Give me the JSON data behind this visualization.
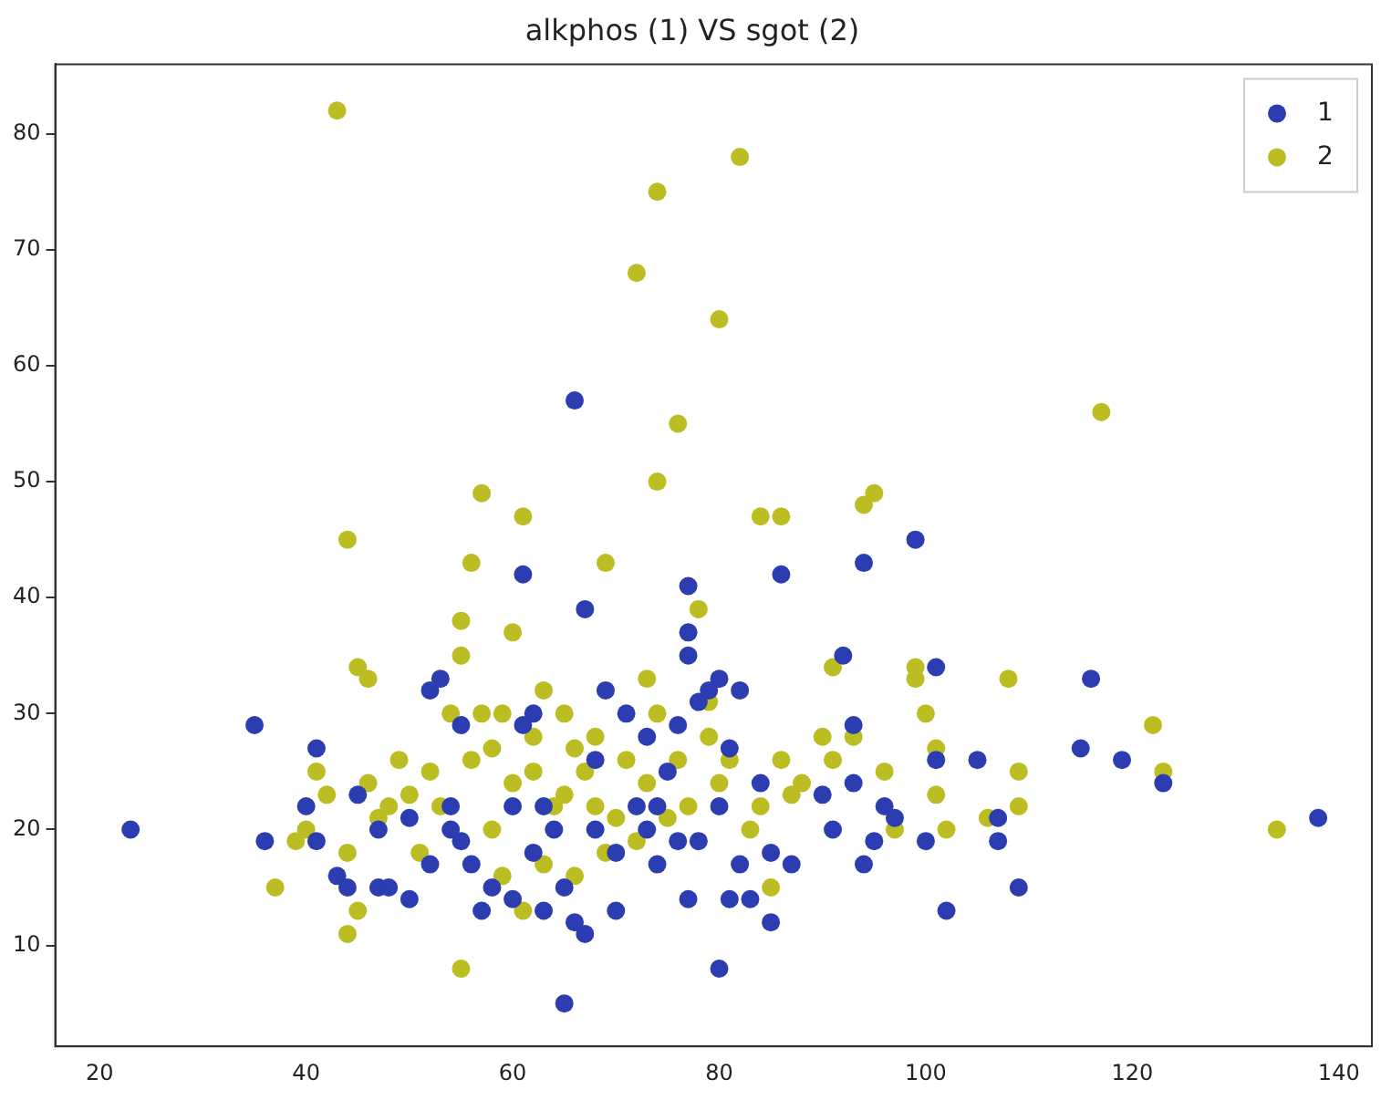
{
  "chart_data": {
    "type": "scatter",
    "title": "alkphos (1) VS sgot (2)",
    "marker": "circle",
    "legend": "top right",
    "grid": false,
    "xlim": [
      15.7,
      143.2
    ],
    "xticks": [
      20,
      40,
      60,
      80,
      100,
      120,
      140
    ],
    "ylim": [
      1.3,
      86
    ],
    "yticks": [
      10,
      20,
      30,
      40,
      50,
      60,
      70,
      80
    ],
    "series": [
      {
        "name": "1",
        "color": "#2b3db0",
        "x": [
          23,
          35,
          36,
          41,
          40,
          41,
          43,
          44,
          45,
          47,
          48,
          47,
          50,
          50,
          52,
          53,
          52,
          54,
          54,
          55,
          55,
          56,
          57,
          58,
          60,
          60,
          61,
          61,
          62,
          62,
          63,
          63,
          64,
          65,
          65,
          66,
          66,
          67,
          67,
          68,
          68,
          69,
          70,
          70,
          71,
          72,
          73,
          73,
          74,
          74,
          75,
          76,
          76,
          77,
          77,
          77,
          77,
          78,
          78,
          79,
          80,
          80,
          80,
          81,
          81,
          82,
          82,
          83,
          84,
          85,
          86,
          85,
          87,
          90,
          91,
          92,
          93,
          93,
          94,
          94,
          95,
          96,
          97,
          99,
          100,
          101,
          101,
          102,
          105,
          107,
          107,
          109,
          115,
          116,
          119,
          123,
          138
        ],
        "values": [
          20,
          29,
          19,
          27,
          22,
          19,
          16,
          15,
          23,
          15,
          15,
          20,
          21,
          14,
          32,
          33,
          17,
          22,
          20,
          29,
          19,
          17,
          13,
          15,
          22,
          14,
          29,
          42,
          18,
          30,
          22,
          13,
          20,
          5,
          15,
          57,
          12,
          11,
          39,
          20,
          26,
          32,
          18,
          13,
          30,
          22,
          20,
          28,
          17,
          22,
          25,
          29,
          19,
          14,
          35,
          41,
          37,
          31,
          19,
          32,
          22,
          8,
          33,
          14,
          27,
          32,
          17,
          14,
          24,
          18,
          42,
          12,
          17,
          23,
          20,
          35,
          29,
          24,
          43,
          17,
          19,
          22,
          21,
          45,
          19,
          34,
          26,
          13,
          26,
          21,
          19,
          15,
          27,
          33,
          26,
          24,
          21
        ]
      },
      {
        "name": "2",
        "color": "#bcbd22",
        "x": [
          37,
          39,
          40,
          41,
          42,
          43,
          44,
          44,
          44,
          45,
          45,
          46,
          46,
          47,
          48,
          49,
          50,
          51,
          52,
          53,
          54,
          55,
          55,
          55,
          56,
          56,
          57,
          57,
          58,
          58,
          59,
          59,
          60,
          60,
          61,
          61,
          62,
          62,
          63,
          63,
          64,
          65,
          65,
          66,
          66,
          67,
          68,
          68,
          69,
          69,
          70,
          71,
          72,
          72,
          73,
          73,
          74,
          74,
          74,
          75,
          76,
          76,
          77,
          78,
          79,
          79,
          80,
          80,
          81,
          82,
          83,
          84,
          84,
          85,
          86,
          86,
          87,
          88,
          90,
          91,
          91,
          93,
          94,
          95,
          96,
          97,
          99,
          99,
          100,
          101,
          101,
          102,
          106,
          108,
          109,
          109,
          117,
          122,
          123,
          134
        ],
        "values": [
          15,
          19,
          20,
          25,
          23,
          82,
          45,
          18,
          11,
          13,
          34,
          33,
          24,
          21,
          22,
          26,
          23,
          18,
          25,
          22,
          30,
          8,
          38,
          35,
          43,
          26,
          30,
          49,
          27,
          20,
          30,
          16,
          37,
          24,
          47,
          13,
          25,
          28,
          32,
          17,
          22,
          30,
          23,
          27,
          16,
          25,
          28,
          22,
          43,
          18,
          21,
          26,
          68,
          19,
          33,
          24,
          50,
          75,
          30,
          21,
          55,
          26,
          22,
          39,
          31,
          28,
          64,
          24,
          26,
          78,
          20,
          47,
          22,
          15,
          47,
          26,
          23,
          24,
          28,
          34,
          26,
          28,
          48,
          49,
          25,
          20,
          34,
          33,
          30,
          23,
          27,
          20,
          21,
          33,
          25,
          22,
          56,
          29,
          25,
          20
        ]
      }
    ]
  }
}
